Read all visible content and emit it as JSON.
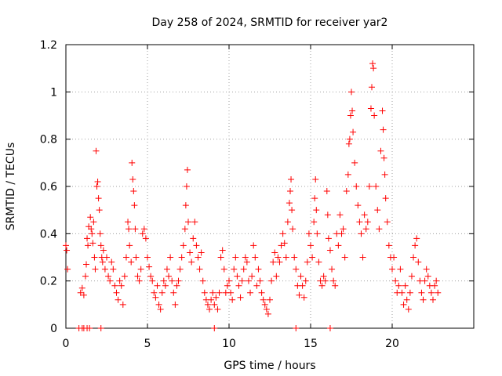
{
  "chart_data": {
    "type": "scatter",
    "title": "Day 258 of 2024, SRMTID for receiver yar2",
    "xlabel": "GPS time / hours",
    "ylabel": "SRMTID / TECUs",
    "xlim": [
      0,
      25
    ],
    "ylim": [
      0,
      1.2
    ],
    "xticks": [
      0,
      5,
      10,
      15,
      20
    ],
    "xtick_labels": [
      "0",
      "5",
      "10",
      "15",
      "20"
    ],
    "yticks": [
      0,
      0.2,
      0.4,
      0.6,
      0.8,
      1,
      1.2
    ],
    "ytick_labels": [
      "0",
      "0.2",
      "0.4",
      "0.6",
      "0.8",
      "1",
      "1.2"
    ],
    "grid": true,
    "marker": "plus",
    "series": [
      {
        "name": "SRMTID",
        "color": "#ff0000",
        "points": [
          [
            0.0,
            0.35
          ],
          [
            0.05,
            0.33
          ],
          [
            0.1,
            0.25
          ],
          [
            0.8,
            0.0
          ],
          [
            1.0,
            0.0
          ],
          [
            1.1,
            0.0
          ],
          [
            1.3,
            0.0
          ],
          [
            1.45,
            0.0
          ],
          [
            2.15,
            0.0
          ],
          [
            9.1,
            0.0
          ],
          [
            14.1,
            0.0
          ],
          [
            16.2,
            0.0
          ],
          [
            0.9,
            0.15
          ],
          [
            1.0,
            0.17
          ],
          [
            1.1,
            0.14
          ],
          [
            1.2,
            0.22
          ],
          [
            1.25,
            0.27
          ],
          [
            1.3,
            0.38
          ],
          [
            1.35,
            0.35
          ],
          [
            1.4,
            0.43
          ],
          [
            1.5,
            0.47
          ],
          [
            1.55,
            0.42
          ],
          [
            1.6,
            0.4
          ],
          [
            1.65,
            0.36
          ],
          [
            1.7,
            0.45
          ],
          [
            1.75,
            0.3
          ],
          [
            1.8,
            0.25
          ],
          [
            1.85,
            0.75
          ],
          [
            1.9,
            0.6
          ],
          [
            1.95,
            0.62
          ],
          [
            2.0,
            0.55
          ],
          [
            2.05,
            0.5
          ],
          [
            2.1,
            0.4
          ],
          [
            2.15,
            0.35
          ],
          [
            2.2,
            0.3
          ],
          [
            2.25,
            0.28
          ],
          [
            2.3,
            0.33
          ],
          [
            2.4,
            0.25
          ],
          [
            2.5,
            0.3
          ],
          [
            2.6,
            0.22
          ],
          [
            2.7,
            0.2
          ],
          [
            2.8,
            0.28
          ],
          [
            2.9,
            0.25
          ],
          [
            3.0,
            0.18
          ],
          [
            3.1,
            0.15
          ],
          [
            3.2,
            0.12
          ],
          [
            3.3,
            0.2
          ],
          [
            3.4,
            0.18
          ],
          [
            3.5,
            0.1
          ],
          [
            3.6,
            0.22
          ],
          [
            3.7,
            0.3
          ],
          [
            3.8,
            0.45
          ],
          [
            3.85,
            0.42
          ],
          [
            3.9,
            0.35
          ],
          [
            4.0,
            0.28
          ],
          [
            4.05,
            0.7
          ],
          [
            4.1,
            0.63
          ],
          [
            4.15,
            0.58
          ],
          [
            4.2,
            0.52
          ],
          [
            4.25,
            0.42
          ],
          [
            4.3,
            0.3
          ],
          [
            4.4,
            0.22
          ],
          [
            4.5,
            0.2
          ],
          [
            4.6,
            0.25
          ],
          [
            4.7,
            0.4
          ],
          [
            4.8,
            0.42
          ],
          [
            4.9,
            0.38
          ],
          [
            5.0,
            0.3
          ],
          [
            5.1,
            0.26
          ],
          [
            5.2,
            0.22
          ],
          [
            5.3,
            0.2
          ],
          [
            5.4,
            0.15
          ],
          [
            5.5,
            0.13
          ],
          [
            5.6,
            0.18
          ],
          [
            5.7,
            0.1
          ],
          [
            5.8,
            0.08
          ],
          [
            5.9,
            0.15
          ],
          [
            6.0,
            0.2
          ],
          [
            6.1,
            0.18
          ],
          [
            6.2,
            0.25
          ],
          [
            6.3,
            0.22
          ],
          [
            6.4,
            0.3
          ],
          [
            6.5,
            0.2
          ],
          [
            6.6,
            0.15
          ],
          [
            6.7,
            0.1
          ],
          [
            6.8,
            0.18
          ],
          [
            6.9,
            0.2
          ],
          [
            7.0,
            0.25
          ],
          [
            7.1,
            0.3
          ],
          [
            7.2,
            0.35
          ],
          [
            7.3,
            0.42
          ],
          [
            7.35,
            0.52
          ],
          [
            7.4,
            0.6
          ],
          [
            7.45,
            0.67
          ],
          [
            7.5,
            0.45
          ],
          [
            7.6,
            0.32
          ],
          [
            7.7,
            0.28
          ],
          [
            7.8,
            0.38
          ],
          [
            7.9,
            0.45
          ],
          [
            8.0,
            0.35
          ],
          [
            8.1,
            0.3
          ],
          [
            8.2,
            0.25
          ],
          [
            8.3,
            0.32
          ],
          [
            8.4,
            0.2
          ],
          [
            8.5,
            0.15
          ],
          [
            8.6,
            0.12
          ],
          [
            8.7,
            0.1
          ],
          [
            8.8,
            0.08
          ],
          [
            8.9,
            0.12
          ],
          [
            9.0,
            0.15
          ],
          [
            9.1,
            0.1
          ],
          [
            9.2,
            0.13
          ],
          [
            9.3,
            0.08
          ],
          [
            9.4,
            0.15
          ],
          [
            9.5,
            0.3
          ],
          [
            9.6,
            0.33
          ],
          [
            9.7,
            0.25
          ],
          [
            9.8,
            0.15
          ],
          [
            9.9,
            0.18
          ],
          [
            10.0,
            0.2
          ],
          [
            10.1,
            0.15
          ],
          [
            10.2,
            0.12
          ],
          [
            10.3,
            0.25
          ],
          [
            10.4,
            0.3
          ],
          [
            10.5,
            0.22
          ],
          [
            10.6,
            0.18
          ],
          [
            10.7,
            0.13
          ],
          [
            10.8,
            0.2
          ],
          [
            10.9,
            0.25
          ],
          [
            11.0,
            0.3
          ],
          [
            11.1,
            0.28
          ],
          [
            11.2,
            0.2
          ],
          [
            11.3,
            0.15
          ],
          [
            11.4,
            0.22
          ],
          [
            11.5,
            0.35
          ],
          [
            11.6,
            0.3
          ],
          [
            11.7,
            0.18
          ],
          [
            11.8,
            0.25
          ],
          [
            11.9,
            0.2
          ],
          [
            12.0,
            0.15
          ],
          [
            12.1,
            0.12
          ],
          [
            12.2,
            0.1
          ],
          [
            12.3,
            0.08
          ],
          [
            12.4,
            0.06
          ],
          [
            12.5,
            0.12
          ],
          [
            12.6,
            0.2
          ],
          [
            12.7,
            0.28
          ],
          [
            12.8,
            0.32
          ],
          [
            12.9,
            0.22
          ],
          [
            13.0,
            0.3
          ],
          [
            13.1,
            0.28
          ],
          [
            13.2,
            0.35
          ],
          [
            13.3,
            0.4
          ],
          [
            13.4,
            0.36
          ],
          [
            13.5,
            0.3
          ],
          [
            13.6,
            0.45
          ],
          [
            13.7,
            0.53
          ],
          [
            13.75,
            0.58
          ],
          [
            13.8,
            0.63
          ],
          [
            13.85,
            0.5
          ],
          [
            13.9,
            0.42
          ],
          [
            14.0,
            0.3
          ],
          [
            14.1,
            0.25
          ],
          [
            14.2,
            0.18
          ],
          [
            14.3,
            0.14
          ],
          [
            14.4,
            0.22
          ],
          [
            14.5,
            0.18
          ],
          [
            14.6,
            0.13
          ],
          [
            14.7,
            0.2
          ],
          [
            14.8,
            0.28
          ],
          [
            14.9,
            0.4
          ],
          [
            15.0,
            0.35
          ],
          [
            15.1,
            0.3
          ],
          [
            15.2,
            0.45
          ],
          [
            15.25,
            0.55
          ],
          [
            15.3,
            0.63
          ],
          [
            15.35,
            0.5
          ],
          [
            15.4,
            0.4
          ],
          [
            15.5,
            0.28
          ],
          [
            15.6,
            0.2
          ],
          [
            15.7,
            0.18
          ],
          [
            15.8,
            0.22
          ],
          [
            15.9,
            0.2
          ],
          [
            16.0,
            0.58
          ],
          [
            16.05,
            0.48
          ],
          [
            16.1,
            0.38
          ],
          [
            16.2,
            0.33
          ],
          [
            16.3,
            0.25
          ],
          [
            16.4,
            0.2
          ],
          [
            16.5,
            0.18
          ],
          [
            16.6,
            0.4
          ],
          [
            16.7,
            0.35
          ],
          [
            16.8,
            0.48
          ],
          [
            16.9,
            0.4
          ],
          [
            17.0,
            0.42
          ],
          [
            17.1,
            0.3
          ],
          [
            17.2,
            0.58
          ],
          [
            17.3,
            0.65
          ],
          [
            17.35,
            0.78
          ],
          [
            17.4,
            0.8
          ],
          [
            17.45,
            0.9
          ],
          [
            17.5,
            1.0
          ],
          [
            17.55,
            0.92
          ],
          [
            17.6,
            0.83
          ],
          [
            17.7,
            0.7
          ],
          [
            17.8,
            0.6
          ],
          [
            17.9,
            0.52
          ],
          [
            18.0,
            0.45
          ],
          [
            18.1,
            0.4
          ],
          [
            18.2,
            0.3
          ],
          [
            18.3,
            0.48
          ],
          [
            18.4,
            0.42
          ],
          [
            18.5,
            0.45
          ],
          [
            18.6,
            0.6
          ],
          [
            18.7,
            0.93
          ],
          [
            18.75,
            1.02
          ],
          [
            18.8,
            1.12
          ],
          [
            18.85,
            1.1
          ],
          [
            18.9,
            0.9
          ],
          [
            19.0,
            0.6
          ],
          [
            19.1,
            0.5
          ],
          [
            19.2,
            0.42
          ],
          [
            19.3,
            0.75
          ],
          [
            19.4,
            0.92
          ],
          [
            19.45,
            0.84
          ],
          [
            19.5,
            0.72
          ],
          [
            19.55,
            0.65
          ],
          [
            19.6,
            0.55
          ],
          [
            19.7,
            0.45
          ],
          [
            19.8,
            0.35
          ],
          [
            19.9,
            0.3
          ],
          [
            20.0,
            0.25
          ],
          [
            20.1,
            0.3
          ],
          [
            20.2,
            0.2
          ],
          [
            20.3,
            0.15
          ],
          [
            20.4,
            0.18
          ],
          [
            20.5,
            0.25
          ],
          [
            20.6,
            0.15
          ],
          [
            20.7,
            0.1
          ],
          [
            20.8,
            0.18
          ],
          [
            20.9,
            0.12
          ],
          [
            21.0,
            0.08
          ],
          [
            21.1,
            0.15
          ],
          [
            21.2,
            0.22
          ],
          [
            21.3,
            0.3
          ],
          [
            21.4,
            0.35
          ],
          [
            21.5,
            0.38
          ],
          [
            21.6,
            0.28
          ],
          [
            21.7,
            0.2
          ],
          [
            21.8,
            0.15
          ],
          [
            21.9,
            0.12
          ],
          [
            22.0,
            0.2
          ],
          [
            22.1,
            0.25
          ],
          [
            22.2,
            0.22
          ],
          [
            22.3,
            0.18
          ],
          [
            22.4,
            0.15
          ],
          [
            22.5,
            0.12
          ],
          [
            22.6,
            0.18
          ],
          [
            22.7,
            0.2
          ],
          [
            22.8,
            0.15
          ]
        ]
      }
    ]
  }
}
